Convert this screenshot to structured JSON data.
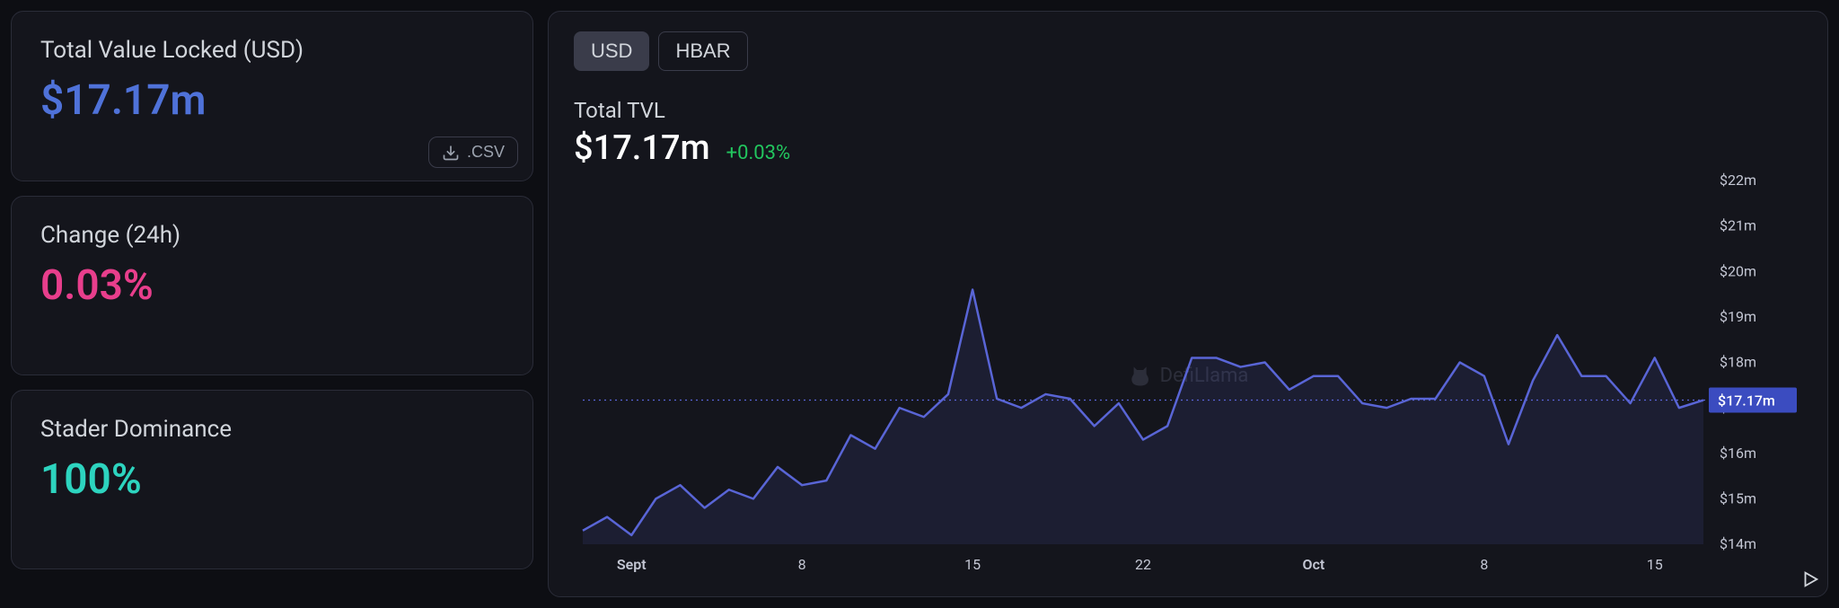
{
  "stats": {
    "tvl": {
      "label": "Total Value Locked (USD)",
      "value": "$17.17m",
      "color": "#4f72d9"
    },
    "change": {
      "label": "Change (24h)",
      "value": "0.03%",
      "color": "#e83e8c"
    },
    "dom": {
      "label": "Stader Dominance",
      "value": "100%",
      "color": "#2dd4bf"
    }
  },
  "csv_label": ".CSV",
  "tabs": {
    "usd": "USD",
    "hbar": "HBAR",
    "active": "usd"
  },
  "chart_header": {
    "title": "Total TVL",
    "value": "$17.17m",
    "pct": "+0.03%",
    "pct_color": "#22c55e"
  },
  "watermark_text": "DefiLlama",
  "chart": {
    "type": "area-line",
    "line_color": "#5965d6",
    "line_width": 2.5,
    "fill_color": "rgba(89,101,214,0.12)",
    "reference_line": {
      "value": 17.17,
      "color": "#5965d6",
      "dash": "2 4",
      "badge_bg": "#3b4cc0",
      "badge_text": "$17.17m",
      "badge_text_color": "#ffffff"
    },
    "background_color": "#14151c",
    "y_axis": {
      "side": "right",
      "min": 14,
      "max": 22,
      "step": 1,
      "format_prefix": "$",
      "format_suffix": "m",
      "label_color": "#c4c7d4",
      "label_fontsize": 16
    },
    "x_axis": {
      "labels": [
        "Sept",
        "8",
        "15",
        "22",
        "Oct",
        "8",
        "15"
      ],
      "label_positions": [
        2,
        9,
        16,
        23,
        30,
        37,
        44
      ],
      "label_color": "#c4c7d4",
      "label_fontsize": 16
    },
    "series": [
      14.3,
      14.6,
      14.2,
      15.0,
      15.3,
      14.8,
      15.2,
      15.0,
      15.7,
      15.3,
      15.4,
      16.4,
      16.1,
      17.0,
      16.8,
      17.3,
      19.6,
      17.2,
      17.0,
      17.3,
      17.2,
      16.6,
      17.1,
      16.3,
      16.6,
      18.1,
      18.1,
      17.9,
      18.0,
      17.4,
      17.7,
      17.7,
      17.1,
      17.0,
      17.2,
      17.2,
      18.0,
      17.7,
      16.2,
      17.6,
      18.6,
      17.7,
      17.7,
      17.1,
      18.1,
      17.0,
      17.17
    ]
  }
}
